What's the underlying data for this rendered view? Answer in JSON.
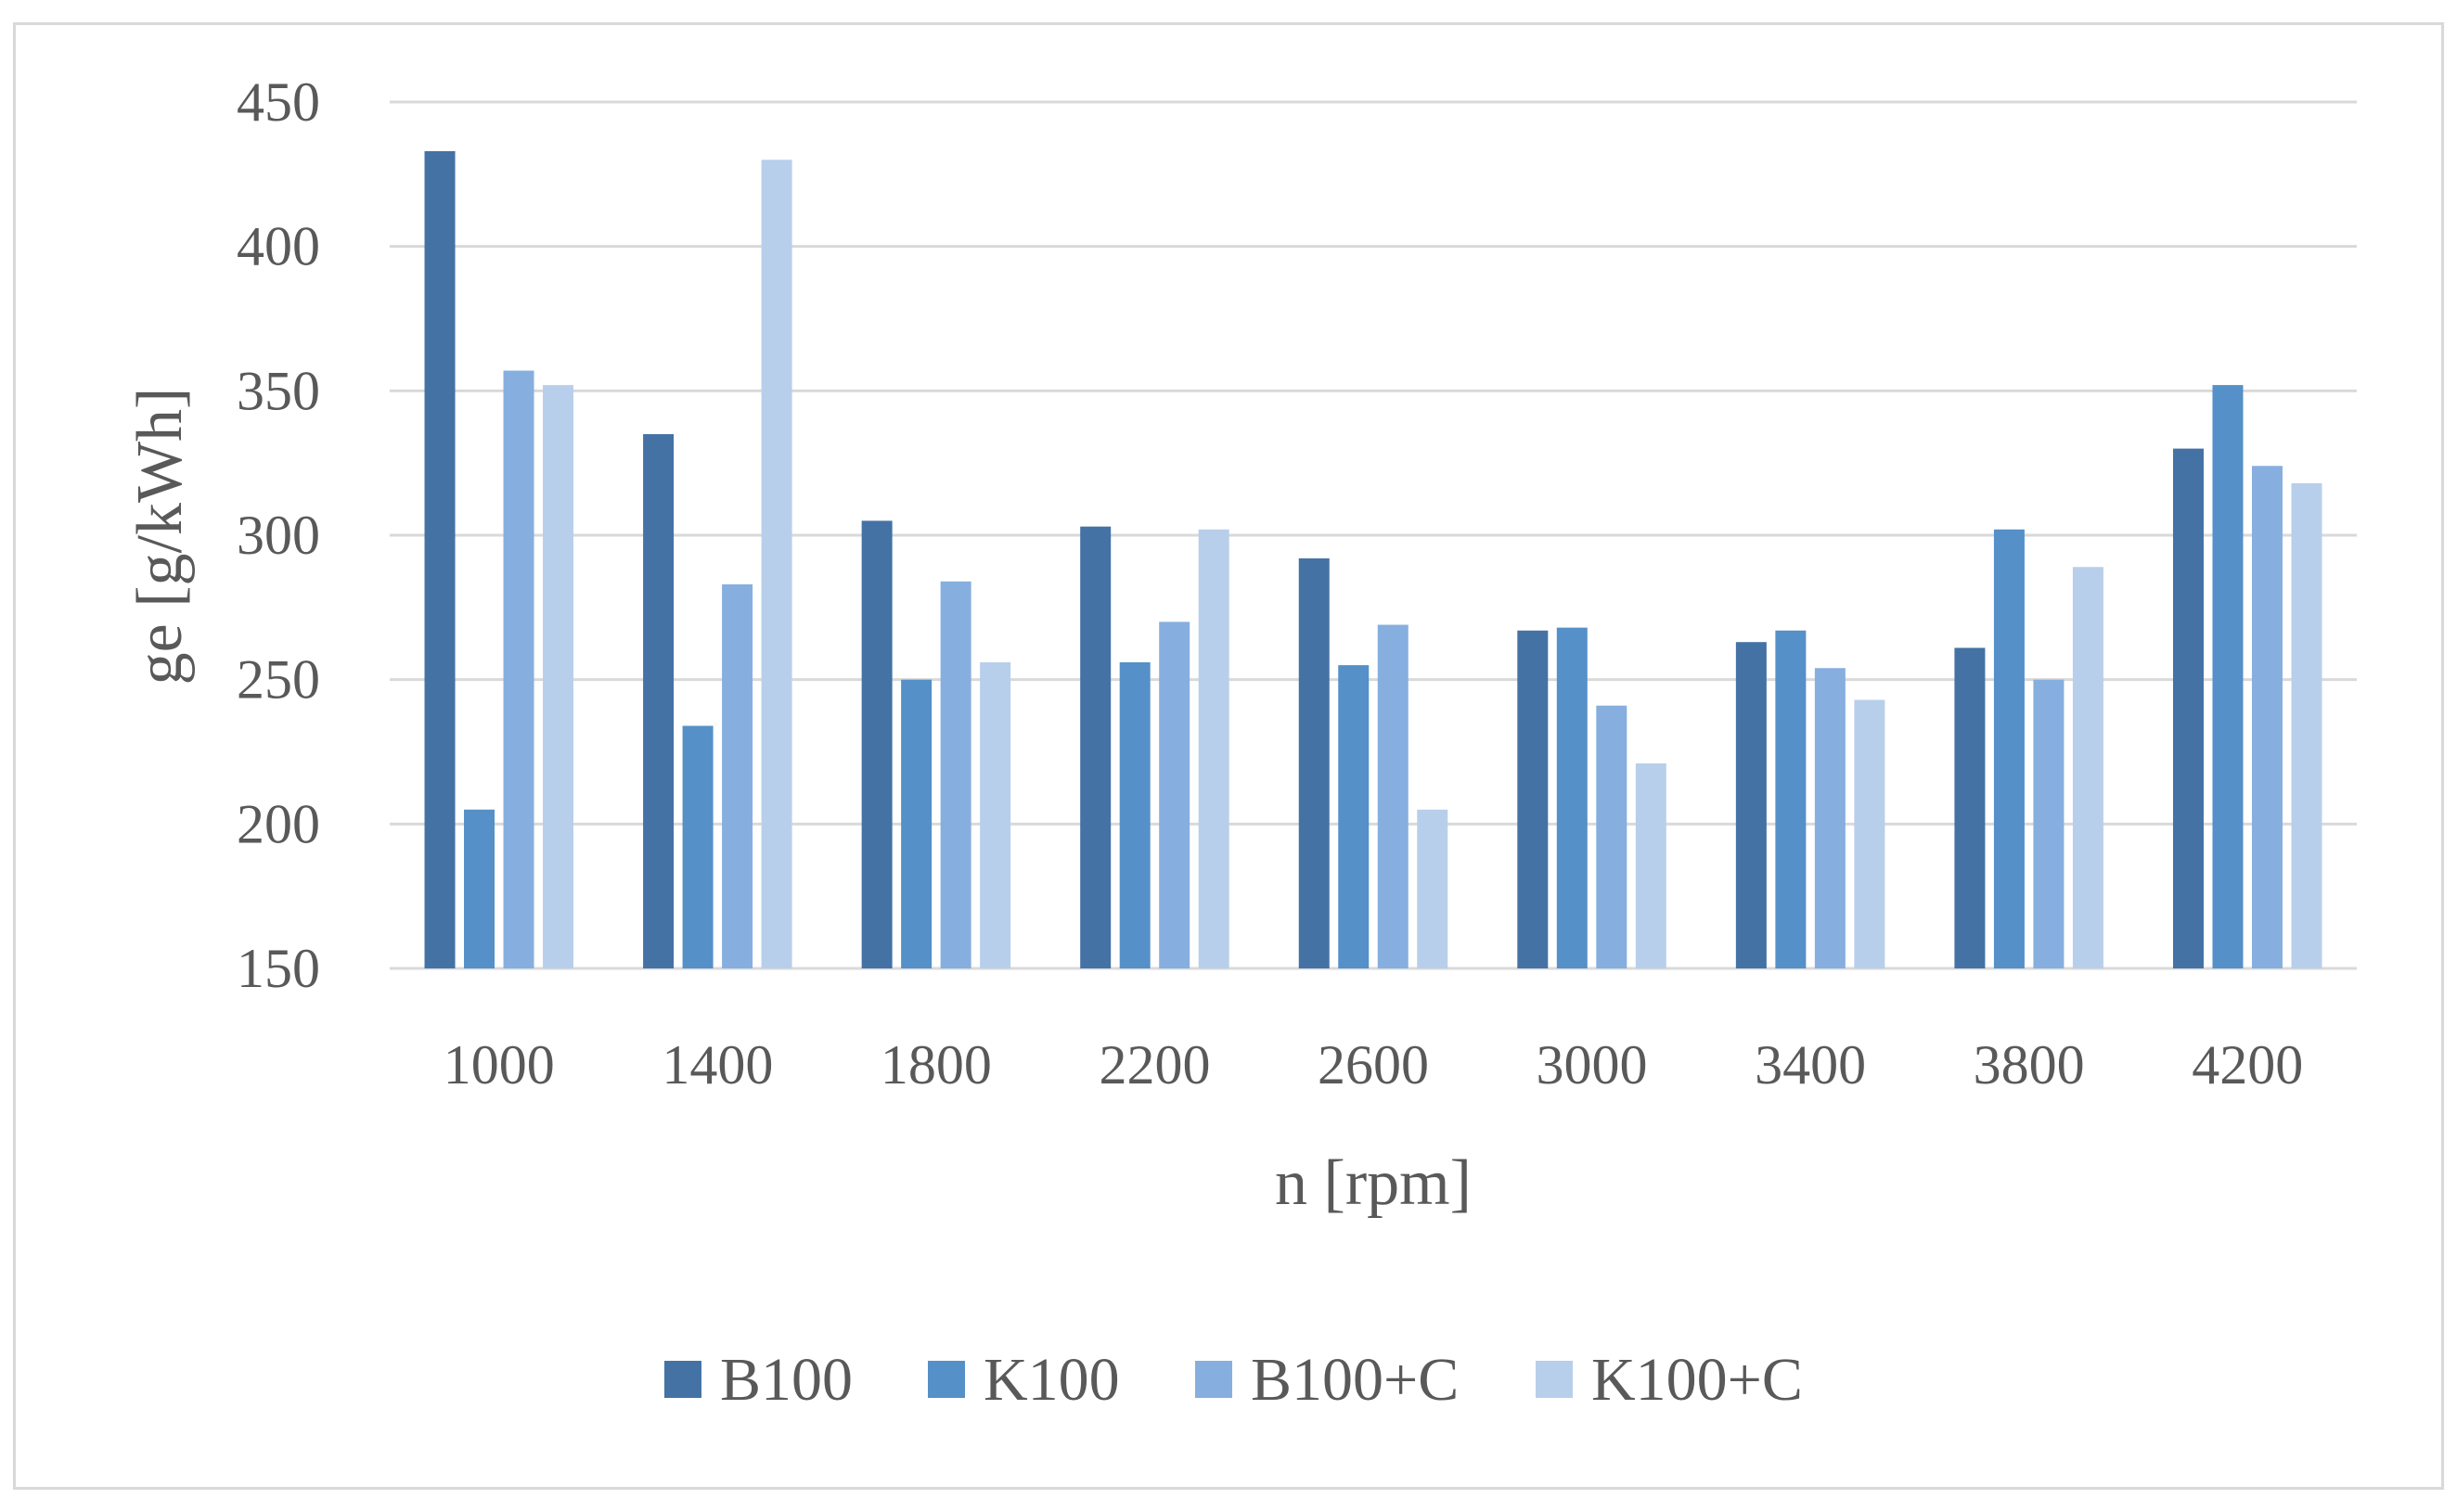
{
  "chart_data": {
    "type": "bar",
    "title": "",
    "xlabel": "n [rpm]",
    "ylabel": "ge [g/kWh]",
    "ylim": [
      150,
      450
    ],
    "yticks": [
      150,
      200,
      250,
      300,
      350,
      400,
      450
    ],
    "grid": true,
    "legend_position": "bottom",
    "categories": [
      "1000",
      "1400",
      "1800",
      "2200",
      "2600",
      "3000",
      "3400",
      "3800",
      "4200"
    ],
    "series": [
      {
        "name": "B100",
        "color": "#4472a5",
        "values": [
          433,
          335,
          305,
          303,
          292,
          267,
          263,
          261,
          330
        ]
      },
      {
        "name": "K100",
        "color": "#5590c8",
        "values": [
          205,
          234,
          250,
          256,
          255,
          268,
          267,
          302,
          352
        ]
      },
      {
        "name": "B100+C",
        "color": "#86afdf",
        "values": [
          357,
          283,
          284,
          270,
          269,
          241,
          254,
          250,
          324
        ]
      },
      {
        "name": "K100+C",
        "color": "#b8cfeb",
        "values": [
          352,
          430,
          256,
          302,
          205,
          221,
          243,
          289,
          318
        ]
      }
    ]
  }
}
